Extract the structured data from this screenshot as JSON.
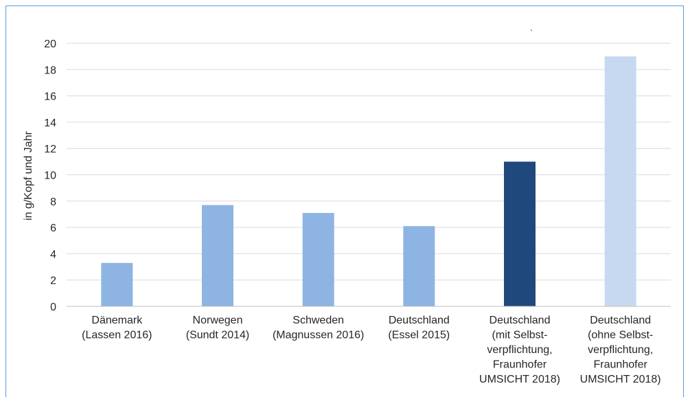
{
  "chart_data": {
    "type": "bar",
    "ylabel": "in g/Kopf und Jahr",
    "ylim": [
      0,
      20
    ],
    "yticks": [
      "0",
      "2",
      "4",
      "6",
      "8",
      "10",
      "12",
      "14",
      "16",
      "18",
      "20"
    ],
    "grid": true,
    "categories": [
      [
        "Dänemark",
        "(Lassen 2016)"
      ],
      [
        "Norwegen",
        "(Sundt 2014)"
      ],
      [
        "Schweden",
        "(Magnussen 2016)"
      ],
      [
        "Deutschland",
        "(Essel 2015)"
      ],
      [
        "Deutschland",
        "(mit Selbst-",
        "verpflichtung,",
        "Fraunhofer",
        "UMSICHT 2018)"
      ],
      [
        "Deutschland",
        "(ohne Selbst-",
        "verpflichtung,",
        "Fraunhofer",
        "UMSICHT 2018)"
      ]
    ],
    "values": [
      3.3,
      7.7,
      7.1,
      6.1,
      11.0,
      19.0
    ],
    "colors": [
      "#8eb4e3",
      "#8eb4e3",
      "#8eb4e3",
      "#8eb4e3",
      "#1f497d",
      "#c6d9f1"
    ]
  }
}
